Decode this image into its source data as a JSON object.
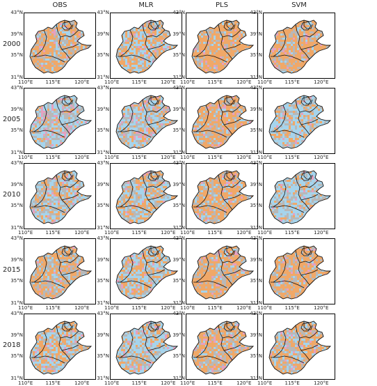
{
  "columns": [
    "OBS",
    "MLR",
    "PLS",
    "SVM"
  ],
  "rows": [
    "2000",
    "2005",
    "2010",
    "2015",
    "2018"
  ],
  "y_ticks": [
    "43°N",
    "39°N",
    "35°N",
    "31°N"
  ],
  "x_ticks": [
    "110°E",
    "115°E",
    "120°E"
  ],
  "colors": {
    "orange": "#f0a868",
    "blue": "#a6d4ec",
    "gray": "#b8b8b8",
    "pink": "#e6a0c0",
    "border": "#111111"
  },
  "panels": [
    {
      "row": "2000",
      "col": "OBS",
      "class_mix": {
        "orange": 0.55,
        "gray": 0.25,
        "blue": 0.15,
        "pink": 0.05
      }
    },
    {
      "row": "2000",
      "col": "MLR",
      "class_mix": {
        "orange": 0.4,
        "gray": 0.15,
        "blue": 0.4,
        "pink": 0.05
      }
    },
    {
      "row": "2000",
      "col": "PLS",
      "class_mix": {
        "orange": 0.65,
        "gray": 0.2,
        "blue": 0.1,
        "pink": 0.05
      }
    },
    {
      "row": "2000",
      "col": "SVM",
      "class_mix": {
        "orange": 0.6,
        "gray": 0.25,
        "blue": 0.1,
        "pink": 0.05
      }
    },
    {
      "row": "2005",
      "col": "OBS",
      "class_mix": {
        "orange": 0.15,
        "gray": 0.35,
        "blue": 0.4,
        "pink": 0.1
      }
    },
    {
      "row": "2005",
      "col": "MLR",
      "class_mix": {
        "orange": 0.2,
        "gray": 0.3,
        "blue": 0.4,
        "pink": 0.1
      }
    },
    {
      "row": "2005",
      "col": "PLS",
      "class_mix": {
        "orange": 0.6,
        "gray": 0.25,
        "blue": 0.1,
        "pink": 0.05
      }
    },
    {
      "row": "2005",
      "col": "SVM",
      "class_mix": {
        "orange": 0.2,
        "gray": 0.25,
        "blue": 0.5,
        "pink": 0.05
      }
    },
    {
      "row": "2010",
      "col": "OBS",
      "class_mix": {
        "orange": 0.25,
        "gray": 0.35,
        "blue": 0.35,
        "pink": 0.05
      }
    },
    {
      "row": "2010",
      "col": "MLR",
      "class_mix": {
        "orange": 0.3,
        "gray": 0.3,
        "blue": 0.35,
        "pink": 0.05
      }
    },
    {
      "row": "2010",
      "col": "PLS",
      "class_mix": {
        "orange": 0.55,
        "gray": 0.25,
        "blue": 0.15,
        "pink": 0.05
      }
    },
    {
      "row": "2010",
      "col": "SVM",
      "class_mix": {
        "orange": 0.15,
        "gray": 0.3,
        "blue": 0.5,
        "pink": 0.05
      }
    },
    {
      "row": "2015",
      "col": "OBS",
      "class_mix": {
        "orange": 0.5,
        "gray": 0.3,
        "blue": 0.15,
        "pink": 0.05
      }
    },
    {
      "row": "2015",
      "col": "MLR",
      "class_mix": {
        "orange": 0.35,
        "gray": 0.25,
        "blue": 0.35,
        "pink": 0.05
      }
    },
    {
      "row": "2015",
      "col": "PLS",
      "class_mix": {
        "orange": 0.6,
        "gray": 0.25,
        "blue": 0.1,
        "pink": 0.05
      }
    },
    {
      "row": "2015",
      "col": "SVM",
      "class_mix": {
        "orange": 0.6,
        "gray": 0.25,
        "blue": 0.1,
        "pink": 0.05
      }
    },
    {
      "row": "2018",
      "col": "OBS",
      "class_mix": {
        "orange": 0.4,
        "gray": 0.2,
        "blue": 0.35,
        "pink": 0.05
      }
    },
    {
      "row": "2018",
      "col": "MLR",
      "class_mix": {
        "orange": 0.25,
        "gray": 0.25,
        "blue": 0.45,
        "pink": 0.05
      }
    },
    {
      "row": "2018",
      "col": "PLS",
      "class_mix": {
        "orange": 0.55,
        "gray": 0.25,
        "blue": 0.15,
        "pink": 0.05
      }
    },
    {
      "row": "2018",
      "col": "SVM",
      "class_mix": {
        "orange": 0.45,
        "gray": 0.25,
        "blue": 0.25,
        "pink": 0.05
      }
    }
  ]
}
